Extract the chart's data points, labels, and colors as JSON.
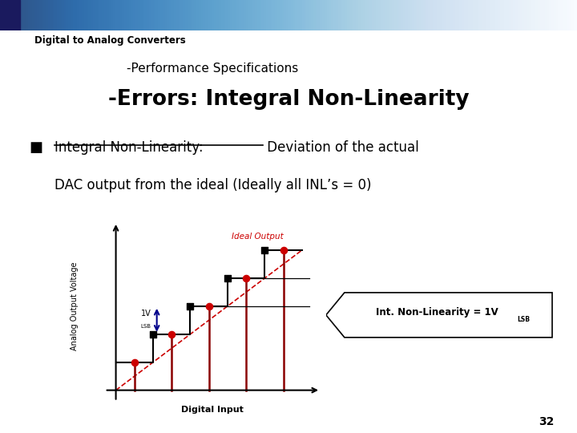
{
  "slide_bg": "#ffffff",
  "header_text": "Digital to Analog Converters",
  "subheader_text": "-Performance Specifications",
  "title_text": "-Errors: Integral Non-Linearity",
  "bullet_underlined": "Integral Non-Linearity:",
  "bullet_rest1": " Deviation of the actual",
  "bullet_line2": "DAC output from the ideal (Ideally all INL’s = 0)",
  "xlabel": "Digital Input",
  "ylabel": "Analog Output Voltage",
  "ideal_label": "Ideal Output",
  "inl_label": "Int. Non-Linearity = 1V",
  "inl_lsb": "LSB",
  "vlsb_label": "1V",
  "vlsb_lsb": "LSB",
  "page_num": "32",
  "ideal_line_color": "#cc0000",
  "actual_dot_color": "#cc0000",
  "staircase_color": "#000000",
  "vertical_line_color": "#8b0000",
  "arrow_color": "#00008b"
}
